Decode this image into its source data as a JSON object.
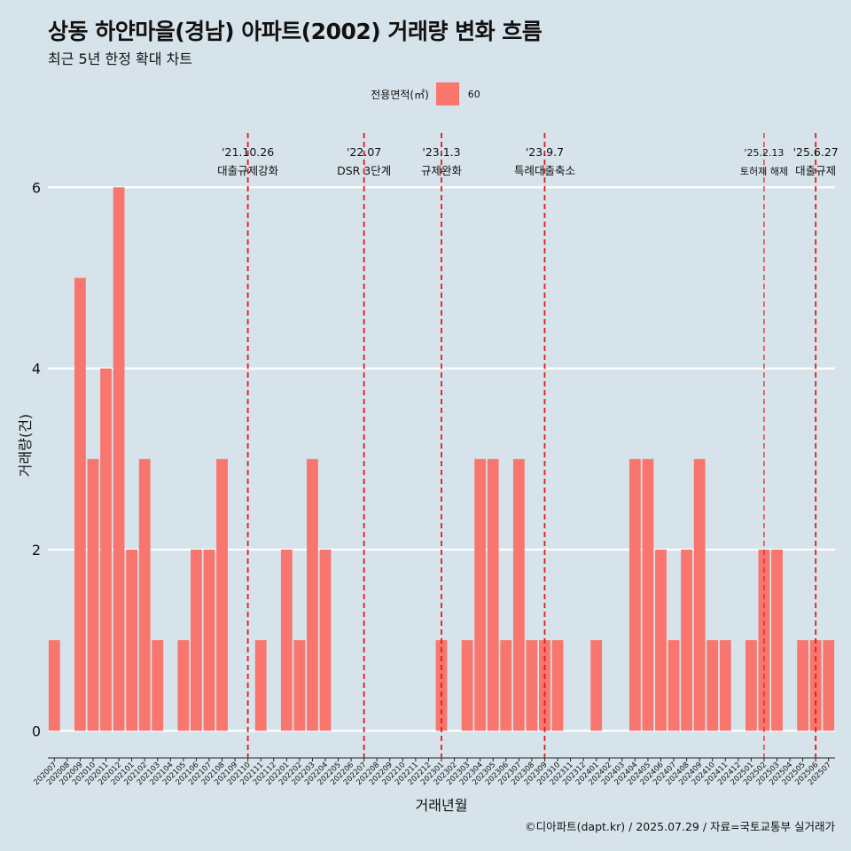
{
  "title": "상동 하얀마을(경남) 아파트(2002) 거래량 변화 흐름",
  "subtitle": "최근 5년 한정 확대 차트",
  "legend": {
    "title": "전용면적(㎡)",
    "items": [
      {
        "label": "60",
        "color": "#f8766d"
      }
    ]
  },
  "caption": "©디아파트(dapt.kr) / 2025.07.29 / 자료=국토교통부 실거래가",
  "chart_data": {
    "type": "bar",
    "xlabel": "거래년월",
    "ylabel": "거래량(건)",
    "ylim": [
      -0.3,
      6.6
    ],
    "yticks": [
      0,
      2,
      4,
      6
    ],
    "grid": true,
    "legend_position": "top",
    "bar_color": "#f8766d",
    "categories": [
      "202007",
      "202008",
      "202009",
      "202010",
      "202011",
      "202012",
      "202101",
      "202102",
      "202103",
      "202104",
      "202105",
      "202106",
      "202107",
      "202108",
      "202109",
      "202110",
      "202111",
      "202112",
      "202201",
      "202202",
      "202203",
      "202204",
      "202205",
      "202206",
      "202207",
      "202208",
      "202209",
      "202210",
      "202211",
      "202212",
      "202301",
      "202302",
      "202303",
      "202304",
      "202305",
      "202306",
      "202307",
      "202308",
      "202309",
      "202310",
      "202311",
      "202312",
      "202401",
      "202402",
      "202403",
      "202404",
      "202405",
      "202406",
      "202407",
      "202408",
      "202409",
      "202410",
      "202411",
      "202412",
      "202501",
      "202502",
      "202503",
      "202504",
      "202505",
      "202506",
      "202507"
    ],
    "series": [
      {
        "name": "60",
        "values": [
          1,
          0,
          5,
          3,
          4,
          6,
          2,
          3,
          1,
          0,
          1,
          2,
          2,
          3,
          0,
          0,
          1,
          0,
          2,
          1,
          3,
          2,
          0,
          0,
          0,
          0,
          0,
          0,
          0,
          0,
          1,
          0,
          1,
          3,
          3,
          1,
          3,
          1,
          1,
          1,
          0,
          0,
          1,
          0,
          0,
          3,
          3,
          2,
          1,
          2,
          3,
          1,
          1,
          0,
          1,
          2,
          2,
          0,
          1,
          1,
          1
        ]
      }
    ],
    "annotations": [
      {
        "x": "202110",
        "date": "'21.10.26",
        "label": "대출규제강화",
        "small": false
      },
      {
        "x": "202207",
        "date": "'22.07",
        "label": "DSR 3단계",
        "small": false
      },
      {
        "x": "202301",
        "date": "'23.1.3",
        "label": "규제완화",
        "small": false
      },
      {
        "x": "202309",
        "date": "'23.9.7",
        "label": "특례대출축소",
        "small": false
      },
      {
        "x": "202502",
        "date": "'25.2.13",
        "label": "토허제 해제",
        "small": true
      },
      {
        "x": "202506",
        "date": "'25.6.27",
        "label": "대출규제",
        "small": false
      }
    ]
  }
}
